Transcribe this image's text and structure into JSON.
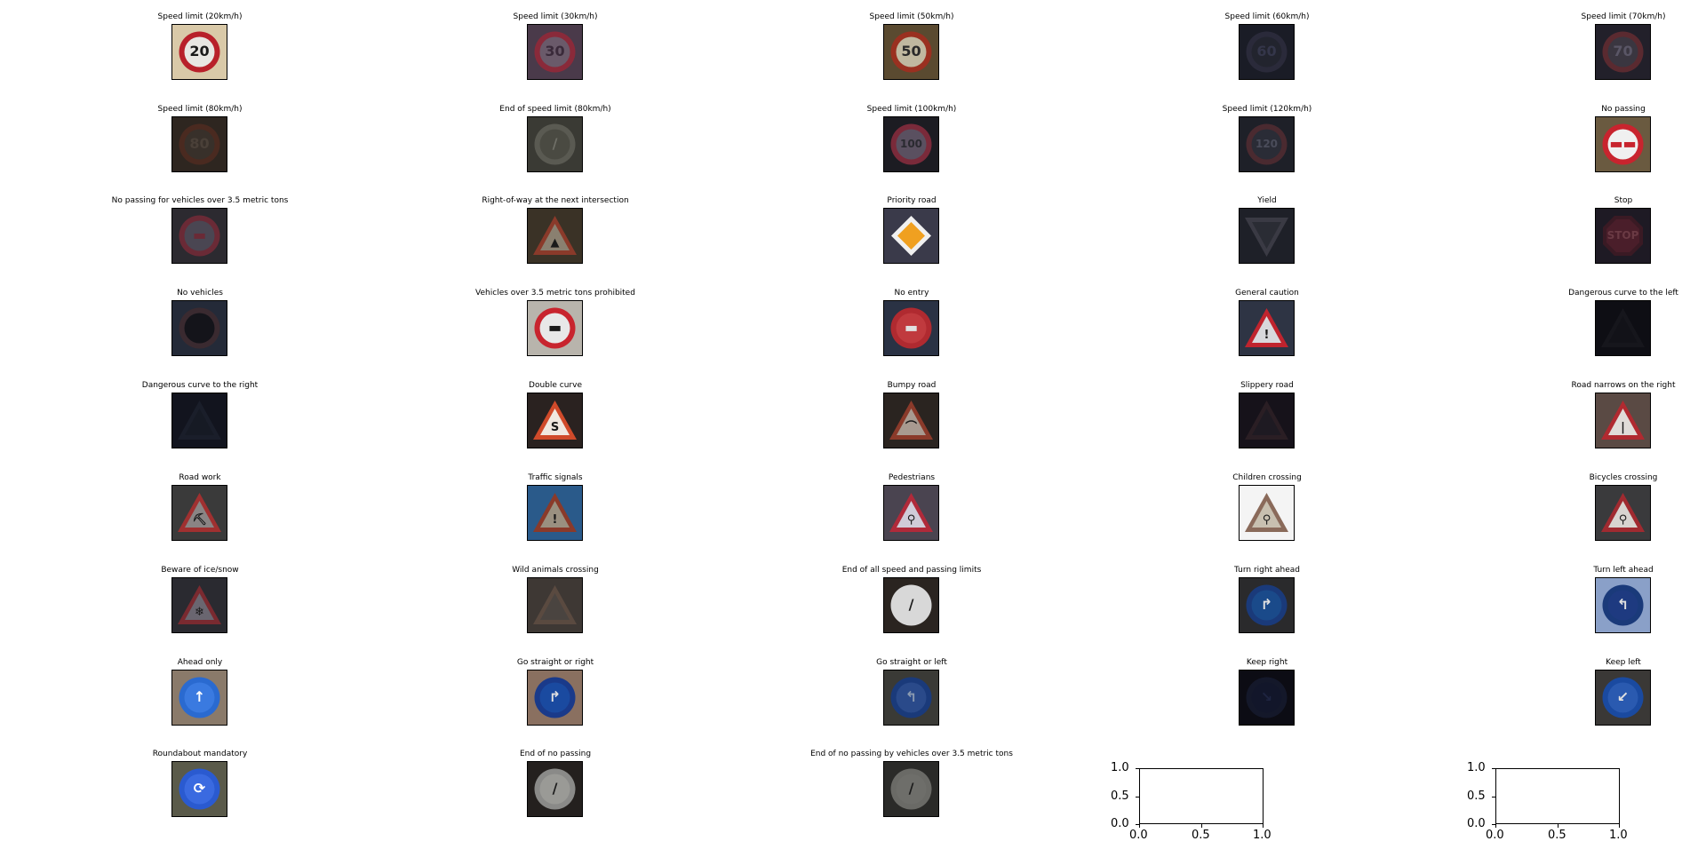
{
  "grid": {
    "columns": 5,
    "rows": 9
  },
  "signs": [
    {
      "label": "Speed limit (20km/h)",
      "bg": "#d9c9a8",
      "shape": "circle",
      "ring": "#b8202a",
      "fill": "#e8e6e2",
      "glyph": "20",
      "glyph_color": "#1a1a1a",
      "dim": 1.0
    },
    {
      "label": "Speed limit (30km/h)",
      "bg": "#4a3a4a",
      "shape": "circle",
      "ring": "#8a2a3a",
      "fill": "#6a5a6a",
      "glyph": "30",
      "glyph_color": "#3a2a3a",
      "dim": 1.0
    },
    {
      "label": "Speed limit (50km/h)",
      "bg": "#5a4a30",
      "shape": "circle",
      "ring": "#9a3020",
      "fill": "#c0b8a0",
      "glyph": "50",
      "glyph_color": "#2a2a2a",
      "dim": 1.0
    },
    {
      "label": "Speed limit (60km/h)",
      "bg": "#1a1c26",
      "shape": "circle",
      "ring": "#2a2a3a",
      "fill": "#22242e",
      "glyph": "60",
      "glyph_color": "#34364a",
      "dim": 1.0
    },
    {
      "label": "Speed limit (70km/h)",
      "bg": "#22202a",
      "shape": "circle",
      "ring": "#5a2a30",
      "fill": "#3a3640",
      "glyph": "70",
      "glyph_color": "#5a5666",
      "dim": 1.0
    },
    {
      "label": "Speed limit (80km/h)",
      "bg": "#2e2620",
      "shape": "circle",
      "ring": "#4a2a20",
      "fill": "#38302a",
      "glyph": "80",
      "glyph_color": "#4a4038",
      "dim": 1.0
    },
    {
      "label": "End of speed limit (80km/h)",
      "bg": "#3a3a34",
      "shape": "circle",
      "ring": "#5a5a52",
      "fill": "#4a4a42",
      "glyph": "/",
      "glyph_color": "#707068",
      "dim": 1.0
    },
    {
      "label": "Speed limit (100km/h)",
      "bg": "#1c1c22",
      "shape": "circle",
      "ring": "#7a2a3a",
      "fill": "#5a5060",
      "glyph": "100",
      "glyph_color": "#2a2a30",
      "dim": 1.0
    },
    {
      "label": "Speed limit (120km/h)",
      "bg": "#1e2028",
      "shape": "circle",
      "ring": "#4a2a30",
      "fill": "#2a2c36",
      "glyph": "120",
      "glyph_color": "#4a4c5a",
      "dim": 1.0
    },
    {
      "label": "No passing",
      "bg": "#6a5a40",
      "shape": "circle",
      "ring": "#c8242e",
      "fill": "#f0f0f0",
      "glyph": "▬▬",
      "glyph_color": "#c8242e",
      "dim": 1.0
    },
    {
      "label": "No passing for vehicles over 3.5 metric tons",
      "bg": "#2c2a30",
      "shape": "circle",
      "ring": "#6a2a36",
      "fill": "#4a4652",
      "glyph": "▬",
      "glyph_color": "#6a2a36",
      "dim": 1.0
    },
    {
      "label": "Right-of-way at the next intersection",
      "bg": "#3a3226",
      "shape": "triangle",
      "ring": "#8a3a2a",
      "fill": "#8a8070",
      "glyph": "▲",
      "glyph_color": "#1a1a1a",
      "dim": 1.0
    },
    {
      "label": "Priority road",
      "bg": "#3a3a4a",
      "shape": "diamond",
      "ring": "#f0f0f0",
      "fill": "#f0a020",
      "glyph": "",
      "glyph_color": "#000",
      "dim": 1.0
    },
    {
      "label": "Yield",
      "bg": "#1e2028",
      "shape": "invtriangle",
      "ring": "#3a3a44",
      "fill": "#2a2c34",
      "glyph": "",
      "glyph_color": "#000",
      "dim": 1.0
    },
    {
      "label": "Stop",
      "bg": "#1e1a24",
      "shape": "octagon",
      "ring": "#3a1a24",
      "fill": "#4a1e2a",
      "glyph": "STOP",
      "glyph_color": "#6a3a44",
      "dim": 1.0
    },
    {
      "label": "No vehicles",
      "bg": "#242a38",
      "shape": "circle",
      "ring": "#3a2a30",
      "fill": "#14141a",
      "glyph": "",
      "glyph_color": "#000",
      "dim": 1.0
    },
    {
      "label": "Vehicles over 3.5 metric tons prohibited",
      "bg": "#b8b4ac",
      "shape": "circle",
      "ring": "#c8242e",
      "fill": "#e8e8e8",
      "glyph": "▬",
      "glyph_color": "#1a1a1a",
      "dim": 1.0
    },
    {
      "label": "No entry",
      "bg": "#2a3244",
      "shape": "circle",
      "ring": "#b02a30",
      "fill": "#c03a3e",
      "glyph": "▬",
      "glyph_color": "#e0e0e0",
      "dim": 1.0
    },
    {
      "label": "General caution",
      "bg": "#2e3444",
      "shape": "triangle",
      "ring": "#c0242e",
      "fill": "#d8d8dc",
      "glyph": "!",
      "glyph_color": "#1a1a1a",
      "dim": 1.0
    },
    {
      "label": "Dangerous curve to the left",
      "bg": "#0e0e14",
      "shape": "triangle",
      "ring": "#16161c",
      "fill": "#121218",
      "glyph": "",
      "glyph_color": "#000",
      "dim": 1.0
    },
    {
      "label": "Dangerous curve to the right",
      "bg": "#12141e",
      "shape": "triangle",
      "ring": "#1a1e2a",
      "fill": "#161a24",
      "glyph": "",
      "glyph_color": "#000",
      "dim": 1.0
    },
    {
      "label": "Double curve",
      "bg": "#2a2220",
      "shape": "triangle",
      "ring": "#d04a2a",
      "fill": "#f0e8e0",
      "glyph": "S",
      "glyph_color": "#1a1a1a",
      "dim": 1.0
    },
    {
      "label": "Bumpy road",
      "bg": "#2a2420",
      "shape": "triangle",
      "ring": "#8a3a2a",
      "fill": "#a89a90",
      "glyph": "⌒",
      "glyph_color": "#1a1a1a",
      "dim": 1.0
    },
    {
      "label": "Slippery road",
      "bg": "#16121a",
      "shape": "triangle",
      "ring": "#2a1e24",
      "fill": "#1e1a22",
      "glyph": "",
      "glyph_color": "#000",
      "dim": 1.0
    },
    {
      "label": "Road narrows on the right",
      "bg": "#5a4a44",
      "shape": "triangle",
      "ring": "#b02a30",
      "fill": "#e0dcd8",
      "glyph": "|",
      "glyph_color": "#1a1a1a",
      "dim": 1.0
    },
    {
      "label": "Road work",
      "bg": "#3a3a3a",
      "shape": "triangle",
      "ring": "#a03030",
      "fill": "#8a8484",
      "glyph": "⛏",
      "glyph_color": "#1a1a1a",
      "dim": 1.0
    },
    {
      "label": "Traffic signals",
      "bg": "#2a5a8a",
      "shape": "triangle",
      "ring": "#8a3a2a",
      "fill": "#9a9080",
      "glyph": "!",
      "glyph_color": "#1a1a1a",
      "dim": 1.0
    },
    {
      "label": "Pedestrians",
      "bg": "#4a4450",
      "shape": "triangle",
      "ring": "#b02a3a",
      "fill": "#d0ccd8",
      "glyph": "⚲",
      "glyph_color": "#1a1a1a",
      "dim": 1.0
    },
    {
      "label": "Children crossing",
      "bg": "#f4f4f4",
      "shape": "triangle",
      "ring": "#8a6a5a",
      "fill": "#c8c0b0",
      "glyph": "⚲",
      "glyph_color": "#1a1a1a",
      "dim": 1.0
    },
    {
      "label": "Bicycles crossing",
      "bg": "#3a3a3c",
      "shape": "triangle",
      "ring": "#a02a30",
      "fill": "#d8d4d0",
      "glyph": "⚲",
      "glyph_color": "#1a1a1a",
      "dim": 1.0
    },
    {
      "label": "Beware of ice/snow",
      "bg": "#2a2a30",
      "shape": "triangle",
      "ring": "#7a2a30",
      "fill": "#6a6670",
      "glyph": "❄",
      "glyph_color": "#1a1a1a",
      "dim": 1.0
    },
    {
      "label": "Wild animals crossing",
      "bg": "#3e3834",
      "shape": "triangle",
      "ring": "#5a4a40",
      "fill": "#4a4440",
      "glyph": "",
      "glyph_color": "#000",
      "dim": 1.0
    },
    {
      "label": "End of all speed and passing limits",
      "bg": "#2a2420",
      "shape": "circle",
      "ring": "#d8d8d8",
      "fill": "#d8d8d8",
      "glyph": "/",
      "glyph_color": "#1a1a1a",
      "dim": 1.0
    },
    {
      "label": "Turn right ahead",
      "bg": "#2a2a2c",
      "shape": "circle",
      "ring": "#1a3a7a",
      "fill": "#1a4a8a",
      "glyph": "↱",
      "glyph_color": "#e0e0e0",
      "dim": 1.0
    },
    {
      "label": "Turn left ahead",
      "bg": "#8aa0c8",
      "shape": "circle",
      "ring": "#1a3a7a",
      "fill": "#1e3a80",
      "glyph": "↰",
      "glyph_color": "#e0e0e0",
      "dim": 1.0
    },
    {
      "label": "Ahead only",
      "bg": "#8a7a6a",
      "shape": "circle",
      "ring": "#2a6ad0",
      "fill": "#3a7ae0",
      "glyph": "↑",
      "glyph_color": "#ffffff",
      "dim": 1.0
    },
    {
      "label": "Go straight or right",
      "bg": "#8a7060",
      "shape": "circle",
      "ring": "#1a3a8a",
      "fill": "#1a4aa0",
      "glyph": "↱",
      "glyph_color": "#e0e0e0",
      "dim": 1.0
    },
    {
      "label": "Go straight or left",
      "bg": "#3a3a36",
      "shape": "circle",
      "ring": "#1a3a7a",
      "fill": "#2a4a8a",
      "glyph": "↰",
      "glyph_color": "#8a9ab0",
      "dim": 1.0
    },
    {
      "label": "Keep right",
      "bg": "#0c0c14",
      "shape": "circle",
      "ring": "#14182a",
      "fill": "#12162a",
      "glyph": "↘",
      "glyph_color": "#1e2440",
      "dim": 1.0
    },
    {
      "label": "Keep left",
      "bg": "#3a3836",
      "shape": "circle",
      "ring": "#1a4aa0",
      "fill": "#2a5ab0",
      "glyph": "↙",
      "glyph_color": "#e0e0e0",
      "dim": 1.0
    },
    {
      "label": "Roundabout mandatory",
      "bg": "#5a5a4a",
      "shape": "circle",
      "ring": "#2a5ad0",
      "fill": "#3a6ae0",
      "glyph": "⟳",
      "glyph_color": "#ffffff",
      "dim": 1.0
    },
    {
      "label": "End of no passing",
      "bg": "#24201e",
      "shape": "circle",
      "ring": "#8a8a88",
      "fill": "#9a9a96",
      "glyph": "/",
      "glyph_color": "#1a1a1a",
      "dim": 1.0
    },
    {
      "label": "End of no passing by vehicles over 3.5 metric tons",
      "bg": "#2a2a28",
      "shape": "circle",
      "ring": "#6a6a66",
      "fill": "#6e6e6a",
      "glyph": "/",
      "glyph_color": "#1a1a1a",
      "dim": 1.0
    }
  ],
  "empty_axes": [
    {
      "yticks": [
        "1.0",
        "0.5",
        "0.0"
      ],
      "xticks": [
        "0.0",
        "0.5",
        "1.0"
      ]
    },
    {
      "yticks": [
        "1.0",
        "0.5",
        "0.0"
      ],
      "xticks": [
        "0.0",
        "0.5",
        "1.0"
      ]
    }
  ]
}
